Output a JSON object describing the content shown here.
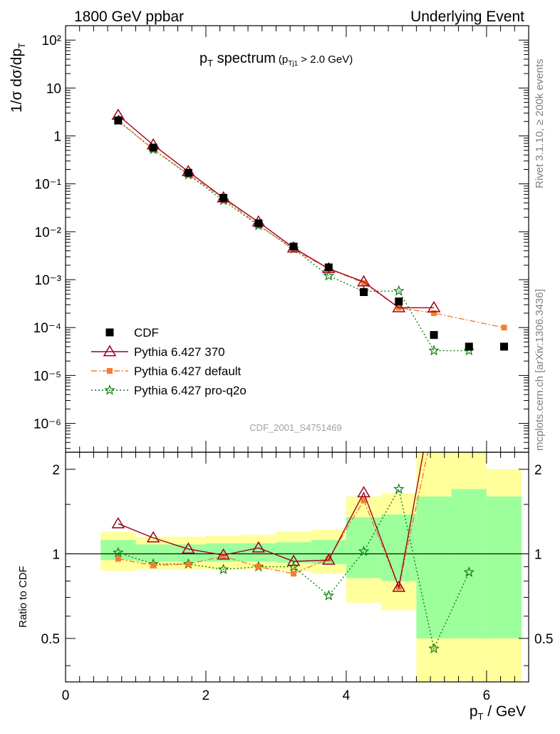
{
  "header": {
    "left": "1800 GeV ppbar",
    "right": "Underlying Event"
  },
  "side_labels": {
    "rivet": "Rivet 3.1.10, ≥ 200k events",
    "mcplots": "mcplots.cern.ch [arXiv:1306.3436]"
  },
  "watermark": "CDF_2001_S4751469",
  "colors": {
    "cdf": "#000000",
    "p370": "#9b0020",
    "pdefault": "#f47e30",
    "pq2o": "#0e7d0e",
    "band_yellow": "#ffff9c",
    "band_green": "#9cff9c"
  },
  "chart_data": [
    {
      "type": "scatter",
      "title": "p_T spectrum",
      "title_parts": {
        "main": "p",
        "main_sub": "T",
        "main_rest": " spectrum",
        "cut": "(p",
        "cut_sub": "Tj1",
        "cut_rest": " > 2.0 GeV)"
      },
      "ylabel": "1/σ dσ/dp_T",
      "ylabel_parts": {
        "main": "1/σ dσ/dp",
        "sub": "T"
      },
      "yscale": "log",
      "xlim": [
        0,
        6.6
      ],
      "ylim": [
        2.5e-07,
        200
      ],
      "ytick_labels": [
        "10⁻⁶",
        "10⁻⁵",
        "10⁻⁴",
        "10⁻³",
        "10⁻²",
        "10⁻¹",
        "1",
        "10",
        "10²"
      ],
      "legend_position": "lower-left",
      "series": [
        {
          "name": "CDF",
          "marker": "square",
          "x": [
            0.75,
            1.25,
            1.75,
            2.25,
            2.75,
            3.25,
            3.75,
            4.25,
            4.75,
            5.25,
            5.75,
            6.25
          ],
          "y": [
            2.1,
            0.57,
            0.17,
            0.051,
            0.015,
            0.0049,
            0.0018,
            0.00055,
            0.00035,
            7e-05,
            4e-05,
            4e-05
          ]
        },
        {
          "name": "Pythia 6.427 370",
          "marker": "triangle",
          "x": [
            0.75,
            1.25,
            1.75,
            2.25,
            2.75,
            3.25,
            3.75,
            4.25,
            4.75,
            5.25
          ],
          "y": [
            2.7,
            0.65,
            0.18,
            0.051,
            0.016,
            0.0046,
            0.0017,
            0.0009,
            0.00026,
            0.00026
          ]
        },
        {
          "name": "Pythia 6.427 default",
          "marker": "square-small",
          "x": [
            0.75,
            1.25,
            1.75,
            2.25,
            2.75,
            3.25,
            3.75,
            4.25,
            4.75,
            5.25,
            6.25
          ],
          "y": [
            2.05,
            0.53,
            0.16,
            0.05,
            0.014,
            0.0042,
            0.0017,
            0.00085,
            0.00026,
            0.0002,
            0.0001
          ]
        },
        {
          "name": "Pythia 6.427 pro-q2o",
          "marker": "star",
          "x": [
            0.75,
            1.25,
            1.75,
            2.25,
            2.75,
            3.25,
            3.75,
            4.25,
            4.75,
            5.25,
            5.75
          ],
          "y": [
            2.1,
            0.52,
            0.155,
            0.045,
            0.0135,
            0.0044,
            0.0012,
            0.00057,
            0.00058,
            3.3e-05,
            3.3e-05
          ]
        }
      ]
    },
    {
      "type": "line",
      "ylabel": "Ratio to CDF",
      "xlabel": "p_T / GeV",
      "xlabel_parts": {
        "main": "p",
        "sub": "T",
        "rest": " / GeV"
      },
      "yscale": "log",
      "xlim": [
        0,
        6.6
      ],
      "ylim": [
        0.35,
        2.3
      ],
      "xtick_labels": [
        "0",
        "2",
        "4",
        "6"
      ],
      "ytick_labels": [
        "0.5",
        "1",
        "2"
      ],
      "bands": {
        "x_edges": [
          0.5,
          1.0,
          1.5,
          2.0,
          2.5,
          3.0,
          3.5,
          4.0,
          4.5,
          5.0,
          5.5,
          6.0,
          6.5
        ],
        "yellow_lo": [
          0.87,
          0.88,
          0.88,
          0.88,
          0.88,
          0.87,
          0.85,
          0.67,
          0.63,
          0.35,
          0.35,
          0.35
        ],
        "yellow_hi": [
          1.2,
          1.15,
          1.15,
          1.16,
          1.17,
          1.2,
          1.22,
          1.6,
          1.64,
          2.3,
          2.3,
          2.0
        ],
        "green_lo": [
          0.95,
          0.94,
          0.94,
          0.94,
          0.94,
          0.93,
          0.92,
          0.82,
          0.8,
          0.5,
          0.5,
          0.5
        ],
        "green_hi": [
          1.12,
          1.08,
          1.08,
          1.09,
          1.09,
          1.1,
          1.12,
          1.35,
          1.38,
          1.6,
          1.7,
          1.6
        ]
      },
      "series": [
        {
          "name": "Pythia 6.427 370",
          "x": [
            0.75,
            1.25,
            1.75,
            2.25,
            2.75,
            3.25,
            3.75,
            4.25,
            4.75,
            5.25
          ],
          "y": [
            1.28,
            1.14,
            1.04,
            0.99,
            1.05,
            0.94,
            0.95,
            1.65,
            0.76,
            3.7
          ]
        },
        {
          "name": "Pythia 6.427 default",
          "x": [
            0.75,
            1.25,
            1.75,
            2.25,
            2.75,
            3.25,
            3.75,
            4.25,
            4.75,
            5.25
          ],
          "y": [
            0.96,
            0.91,
            0.92,
            0.98,
            0.9,
            0.85,
            0.96,
            1.55,
            0.76,
            2.9
          ]
        },
        {
          "name": "Pythia 6.427 pro-q2o",
          "x": [
            0.75,
            1.25,
            1.75,
            2.25,
            2.75,
            3.25,
            3.75,
            4.25,
            4.75,
            5.25,
            5.75
          ],
          "y": [
            1.01,
            0.92,
            0.92,
            0.88,
            0.9,
            0.9,
            0.71,
            1.02,
            1.7,
            0.46,
            0.86
          ]
        }
      ]
    }
  ]
}
